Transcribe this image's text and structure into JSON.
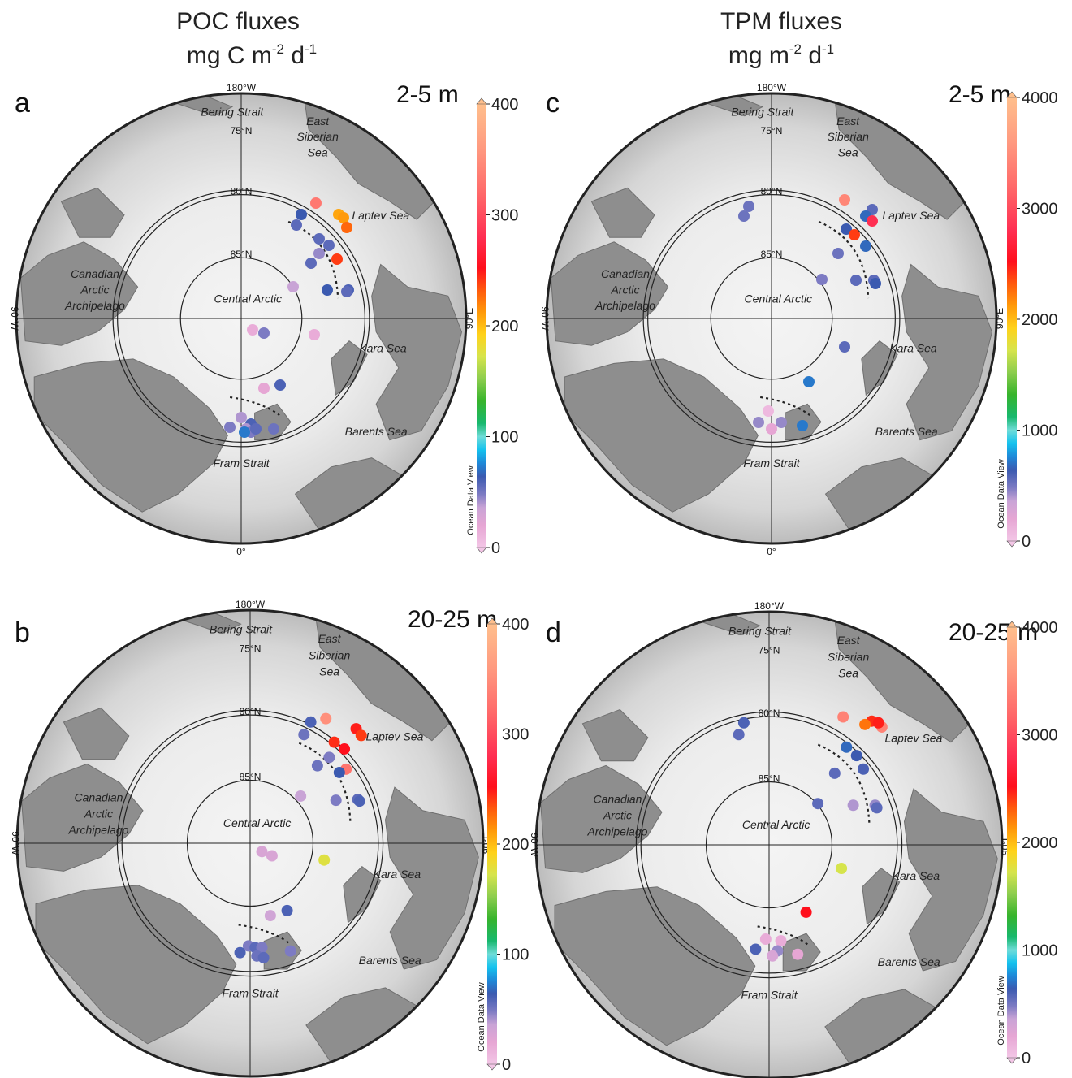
{
  "titles": {
    "poc_line1": "POC fluxes",
    "poc_line2": "mg C m",
    "poc_sup1": "-2",
    "poc_mid": " d",
    "poc_sup2": "-1",
    "tpm_line1": "TPM fluxes",
    "tpm_line2": "mg m",
    "tpm_sup1": "-2",
    "tpm_mid": " d",
    "tpm_sup2": "-1"
  },
  "map_labels": {
    "top": "180°W",
    "bottom": "0°",
    "left": "90°W",
    "right": "90°E",
    "lat75": "75°N",
    "lat80": "80°N",
    "lat85": "85°N",
    "bering": "Bering Strait",
    "east_siberian": [
      "East",
      "Siberian",
      "Sea"
    ],
    "laptev": "Laptev Sea",
    "canadian": [
      "Canadian",
      "Arctic",
      "Archipelago"
    ],
    "central": "Central Arctic",
    "kara": "Kara Sea",
    "barents": "Barents Sea",
    "fram": "Fram Strait"
  },
  "colorbar_credit": "Ocean Data View",
  "panels": [
    {
      "letter": "a",
      "depth": "2-5 m",
      "variable": "POC",
      "ticks": [
        "400",
        "300",
        "200",
        "100",
        "0"
      ],
      "vmax": 400,
      "stations": [
        {
          "t": 1.0
        },
        {
          "t": 0.9
        },
        {
          "t": 0.55
        },
        {
          "t": 0.85
        },
        {
          "t": 0.18
        },
        {
          "t": 0.18
        },
        {
          "t": 0.17
        },
        {
          "t": 0.11
        },
        {
          "t": 0.16
        },
        {
          "t": 0.17
        },
        {
          "t": 0.13
        },
        {
          "t": 0.15
        },
        {
          "t": 0.17
        },
        {
          "t": 0.07
        },
        {
          "t": 0.03
        },
        {
          "t": 0.13
        },
        {
          "t": 0.03
        },
        {
          "t": 0.03
        },
        {
          "t": 0.16
        },
        {
          "t": 0.03
        },
        {
          "t": 0.16
        },
        {
          "t": 0.1
        },
        {
          "t": 0.14
        },
        {
          "t": 0.16
        },
        {
          "t": 0.11
        },
        {
          "t": 0.14
        },
        {
          "t": 0.14
        },
        {
          "t": 0.1
        }
      ]
    },
    {
      "letter": "b",
      "depth": "20-25 m",
      "variable": "POC",
      "ticks": [
        "400",
        "300",
        "200",
        "100",
        "0"
      ],
      "vmax": 400,
      "stations": []
    },
    {
      "letter": "c",
      "depth": "2-5 m",
      "variable": "TPM",
      "ticks": [
        "4000",
        "3000",
        "2000",
        "1000",
        "0"
      ],
      "vmax": 4000,
      "stations": []
    },
    {
      "letter": "d",
      "depth": "20-25 m",
      "variable": "TPM",
      "ticks": [
        "4000",
        "3000",
        "2000",
        "1000",
        "0"
      ],
      "vmax": 4000,
      "stations": []
    }
  ],
  "colors": {
    "land": "#8e8e8e",
    "ice": "#ebebeb",
    "ocean_shade": "#c9c9c9",
    "border": "#222222"
  }
}
